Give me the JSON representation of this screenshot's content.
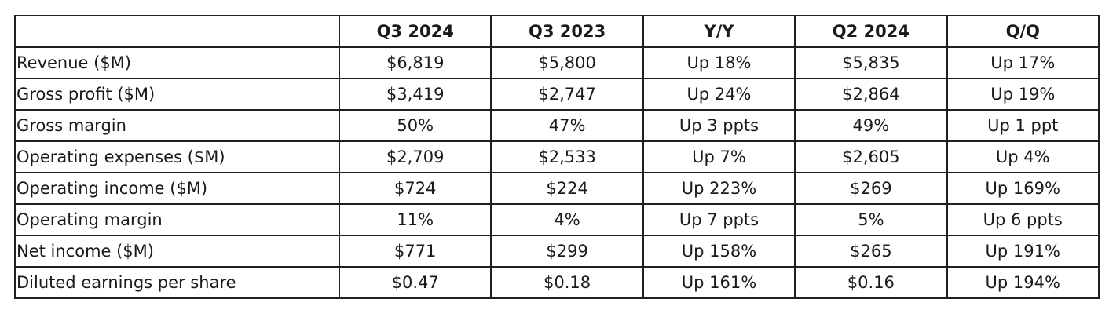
{
  "table": {
    "headers": [
      "",
      "Q3 2024",
      "Q3 2023",
      "Y/Y",
      "Q2 2024",
      "Q/Q"
    ],
    "rows": [
      [
        "Revenue ($M)",
        "$6,819",
        "$5,800",
        "Up 18%",
        "$5,835",
        "Up 17%"
      ],
      [
        "Gross profit ($M)",
        "$3,419",
        "$2,747",
        "Up 24%",
        "$2,864",
        "Up 19%"
      ],
      [
        "Gross margin",
        "50%",
        "47%",
        "Up 3 ppts",
        "49%",
        "Up 1 ppt"
      ],
      [
        "Operating expenses ($M)",
        "$2,709",
        "$2,533",
        "Up 7%",
        "$2,605",
        "Up 4%"
      ],
      [
        "Operating income ($M)",
        "$724",
        "$224",
        "Up 223%",
        "$269",
        "Up 169%"
      ],
      [
        "Operating margin",
        "11%",
        "4%",
        "Up 7 ppts",
        "5%",
        "Up 6 ppts"
      ],
      [
        "Net income ($M)",
        "$771",
        "$299",
        "Up 158%",
        "$265",
        "Up 191%"
      ],
      [
        "Diluted earnings per share",
        "$0.47",
        "$0.18",
        "Up 161%",
        "$0.16",
        "Up 194%"
      ]
    ]
  }
}
